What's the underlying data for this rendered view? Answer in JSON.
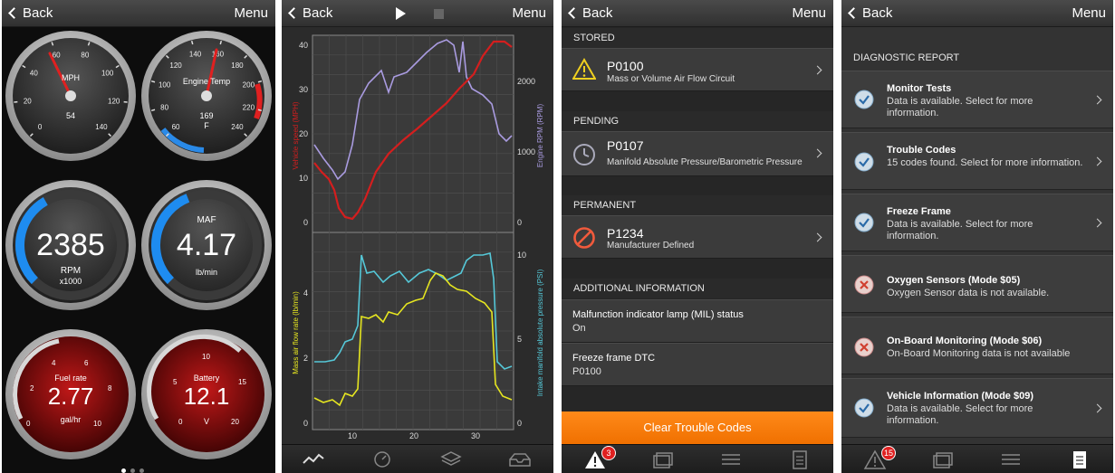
{
  "nav": {
    "back_label": "Back",
    "menu_label": "Menu"
  },
  "dashboard": {
    "speed": {
      "label": "MPH",
      "value": "54",
      "ticks": [
        "0",
        "20",
        "40",
        "60",
        "80",
        "100",
        "120",
        "140"
      ]
    },
    "engine_temp": {
      "label": "Engine Temp",
      "value": "169",
      "unit": "F",
      "ticks": [
        "60",
        "80",
        "100",
        "120",
        "140",
        "160",
        "180",
        "200",
        "220",
        "240"
      ]
    },
    "rpm": {
      "value": "2385",
      "label": "RPM",
      "unit": "x1000",
      "fraction": 0.39
    },
    "maf": {
      "label": "MAF",
      "value": "4.17",
      "unit": "lb/min",
      "fraction": 0.42
    },
    "fuel_rate": {
      "label": "Fuel rate",
      "value": "2.77",
      "unit": "gal/hr",
      "ticks": [
        "0",
        "2",
        "4",
        "6",
        "8",
        "10"
      ]
    },
    "battery": {
      "label": "Battery",
      "value": "12.1",
      "unit": "V",
      "ticks": [
        "0",
        "5",
        "10",
        "15",
        "20"
      ]
    }
  },
  "graph": {
    "top_left_axis": "Vehicle speed (MPH)",
    "top_right_axis": "Engine RPM (RPM)",
    "bottom_left_axis": "Mass air flow rate (lb/min)",
    "bottom_right_axis": "Intake manifold absolute pressure (PSI)",
    "top_left_ticks": [
      "0",
      "10",
      "20",
      "30",
      "40"
    ],
    "top_right_ticks": [
      "0",
      "1000",
      "2000"
    ],
    "bottom_left_ticks": [
      "0",
      "2",
      "4"
    ],
    "bottom_right_ticks": [
      "0",
      "5",
      "10"
    ],
    "x_ticks": [
      "10",
      "20",
      "30"
    ],
    "colors": {
      "speed": "#d41e1e",
      "rpm": "#a99be0",
      "maf": "#e6e620",
      "map": "#55c8d8"
    }
  },
  "codes": {
    "stored_label": "STORED",
    "stored": {
      "code": "P0100",
      "desc": "Mass or Volume Air Flow Circuit"
    },
    "pending_label": "PENDING",
    "pending": {
      "code": "P0107",
      "desc": "Manifold Absolute Pressure/Barometric Pressure"
    },
    "permanent_label": "PERMANENT",
    "permanent": {
      "code": "P1234",
      "desc": "Manufacturer Defined"
    },
    "additional_label": "ADDITIONAL INFORMATION",
    "mil_label": "Malfunction indicator lamp (MIL) status",
    "mil_value": "On",
    "ffdtc_label": "Freeze frame DTC",
    "ffdtc_value": "P0100",
    "clear_button": "Clear Trouble Codes",
    "badge": "3"
  },
  "report": {
    "header": "DIAGNOSTIC REPORT",
    "items": [
      {
        "title": "Monitor Tests",
        "sub": "Data is available. Select for more information."
      },
      {
        "title": "Trouble Codes",
        "sub": "15 codes found. Select for more information."
      },
      {
        "title": "Freeze Frame",
        "sub": "Data is available. Select for more information."
      },
      {
        "title": "Oxygen Sensors (Mode $05)",
        "sub": "Oxygen Sensor data is not available."
      },
      {
        "title": "On-Board Monitoring (Mode $06)",
        "sub": "On-Board Monitoring data is not available"
      },
      {
        "title": "Vehicle Information (Mode $09)",
        "sub": "Data is available. Select for more information."
      }
    ],
    "badge": "15"
  }
}
